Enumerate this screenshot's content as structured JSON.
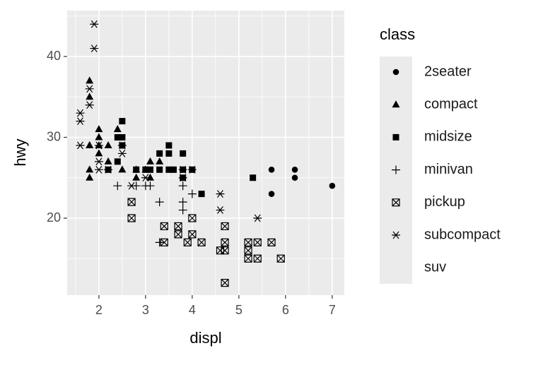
{
  "chart_data": {
    "type": "scatter",
    "x_label": "displ",
    "y_label": "hwy",
    "legend_title": "class",
    "xlim": [
      1.32,
      7.26
    ],
    "ylim": [
      10.48,
      45.68
    ],
    "xticks": [
      2,
      3,
      4,
      5,
      6,
      7
    ],
    "yticks": [
      20,
      30,
      40
    ],
    "x_minor_ticks": [
      1.5,
      2.5,
      3.5,
      4.5,
      5.5,
      6.5
    ],
    "y_minor_ticks": [
      15,
      25,
      35,
      45
    ],
    "grid": true,
    "legend": "right",
    "color": "#000000",
    "series": [
      {
        "name": "2seater",
        "shape": "circle",
        "x": [
          5.7,
          5.7,
          6.2,
          6.2,
          7.0
        ],
        "values": [
          26,
          23,
          26,
          25,
          24
        ]
      },
      {
        "name": "compact",
        "shape": "triangle",
        "x": [
          1.8,
          1.8,
          2.0,
          2.0,
          2.8,
          3.1,
          1.8,
          1.8,
          2.0,
          2.8,
          3.1,
          2.2,
          2.2,
          2.4,
          3.0,
          3.3,
          1.8,
          1.8,
          2.0,
          2.5
        ],
        "values": [
          29,
          29,
          31,
          30,
          26,
          27,
          26,
          25,
          28,
          25,
          25,
          27,
          29,
          31,
          26,
          27,
          37,
          35,
          29,
          26
        ]
      },
      {
        "name": "midsize",
        "shape": "square",
        "x": [
          2.4,
          2.4,
          3.1,
          3.5,
          3.6,
          2.5,
          2.5,
          2.5,
          3.3,
          3.8,
          3.8,
          3.0,
          3.5,
          4.0,
          5.3,
          2.8,
          2.2,
          3.3,
          3.5,
          3.8,
          4.2
        ],
        "values": [
          27,
          30,
          26,
          29,
          26,
          32,
          29,
          30,
          28,
          26,
          28,
          26,
          26,
          26,
          25,
          26,
          26,
          26,
          28,
          25,
          23
        ]
      },
      {
        "name": "minivan",
        "shape": "plus",
        "x": [
          2.4,
          3.0,
          3.3,
          3.3,
          3.8,
          3.8,
          3.8,
          4.0,
          2.8,
          3.1
        ],
        "values": [
          24,
          24,
          22,
          17,
          22,
          21,
          24,
          23,
          24,
          24
        ]
      },
      {
        "name": "pickup",
        "shape": "square-cross",
        "x": [
          2.7,
          2.7,
          3.7,
          3.7,
          3.9,
          4.7,
          4.7,
          4.7,
          5.2,
          5.2,
          5.7,
          5.9,
          4.0,
          4.0,
          4.2,
          4.6,
          5.4,
          5.4,
          3.4,
          3.4,
          4.7,
          5.2
        ],
        "values": [
          20,
          22,
          19,
          18,
          17,
          17,
          16,
          12,
          17,
          15,
          17,
          15,
          18,
          20,
          17,
          16,
          15,
          17,
          17,
          19,
          19,
          16
        ]
      },
      {
        "name": "subcompact",
        "shape": "asterisk",
        "x": [
          1.6,
          1.6,
          1.6,
          1.8,
          1.8,
          1.9,
          1.9,
          2.0,
          2.0,
          2.2,
          2.5,
          2.5,
          2.7,
          3.8,
          3.8,
          4.0,
          4.6,
          4.6,
          5.4,
          2.0,
          3.0
        ],
        "values": [
          33,
          32,
          29,
          36,
          34,
          44,
          41,
          29,
          26,
          26,
          28,
          29,
          24,
          26,
          25,
          26,
          23,
          21,
          20,
          27,
          25
        ]
      },
      {
        "name": "suv",
        "shape": null,
        "x": [],
        "values": []
      }
    ]
  }
}
